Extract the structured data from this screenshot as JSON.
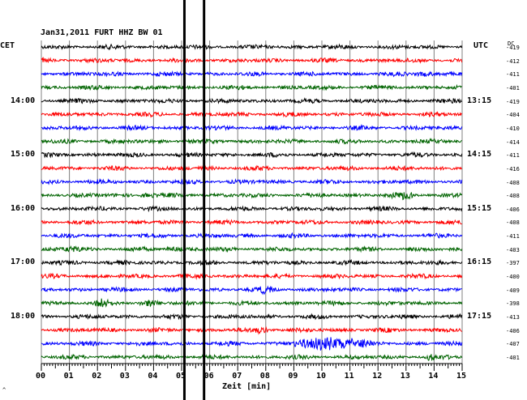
{
  "header": {
    "title": "Jan31,2011   FURT HHZ BW 01",
    "left_tz": "CET",
    "right_tz": "UTC",
    "dc_label": "DC"
  },
  "footer": {
    "xlabel": "Zeit [min]",
    "corner_mark": "^"
  },
  "colors": {
    "trace_cycle": [
      "#000000",
      "#ff0000",
      "#0000ff",
      "#006400"
    ],
    "grid": "#808080"
  },
  "chart_data": {
    "type": "line",
    "title": "Jan31,2011   FURT HHZ BW 01",
    "xlabel": "Zeit [min]",
    "xlim": [
      0,
      15
    ],
    "x_ticks": [
      "00",
      "01",
      "02",
      "03",
      "04",
      "05",
      "06",
      "07",
      "08",
      "09",
      "10",
      "11",
      "12",
      "13",
      "14",
      "15"
    ],
    "left_time_labels": [
      {
        "label": "14:00",
        "row": 4
      },
      {
        "label": "15:00",
        "row": 8
      },
      {
        "label": "16:00",
        "row": 12
      },
      {
        "label": "17:00",
        "row": 16
      },
      {
        "label": "18:00",
        "row": 20
      }
    ],
    "right_time_labels": [
      {
        "label": "13:15",
        "row": 4
      },
      {
        "label": "14:15",
        "row": 8
      },
      {
        "label": "15:15",
        "row": 12
      },
      {
        "label": "16:15",
        "row": 16
      },
      {
        "label": "17:15",
        "row": 20
      }
    ],
    "dc_offsets": [
      -419,
      -412,
      -411,
      -401,
      -419,
      -404,
      -410,
      -414,
      -411,
      -416,
      -408,
      -408,
      -406,
      -408,
      -411,
      -403,
      -397,
      -400,
      -409,
      -398,
      -413,
      -406,
      -407,
      -401
    ],
    "event_markers_min": [
      5.1,
      5.8
    ],
    "event_bursts": [
      {
        "row": 21,
        "start_min": 7.6,
        "end_min": 8.1,
        "level": 2.5
      },
      {
        "row": 22,
        "start_min": 9.0,
        "end_min": 11.8,
        "level": 5
      },
      {
        "row": 19,
        "start_min": 1.9,
        "end_min": 2.4,
        "level": 2.2
      },
      {
        "row": 19,
        "start_min": 3.5,
        "end_min": 4.2,
        "level": 2.3
      },
      {
        "row": 11,
        "start_min": 12.5,
        "end_min": 13.4,
        "level": 1.8
      },
      {
        "row": 11,
        "start_min": 3.5,
        "end_min": 4.2,
        "level": 1.5
      },
      {
        "row": 15,
        "start_min": 0.8,
        "end_min": 1.5,
        "level": 1.5
      },
      {
        "row": 15,
        "start_min": 4.3,
        "end_min": 5.0,
        "level": 1.4
      },
      {
        "row": 23,
        "start_min": 13.7,
        "end_min": 14.0,
        "level": 1.8
      },
      {
        "row": 18,
        "start_min": 7.7,
        "end_min": 8.3,
        "level": 1.6
      },
      {
        "row": 2,
        "start_min": 13.3,
        "end_min": 14.0,
        "level": 1.4
      }
    ],
    "grid": true
  }
}
